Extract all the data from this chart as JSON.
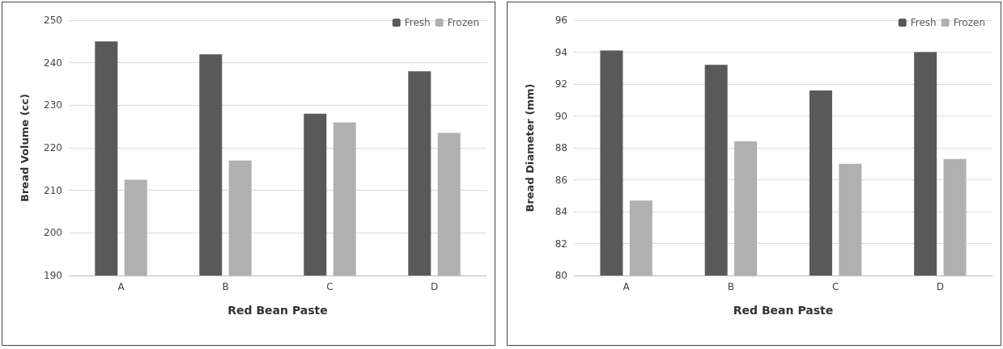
{
  "chart_data": [
    {
      "type": "bar",
      "xlabel": "Red Bean Paste",
      "ylabel": "Bread Volume (cc)",
      "categories": [
        "A",
        "B",
        "C",
        "D"
      ],
      "series": [
        {
          "name": "Fresh",
          "color": "#595959",
          "values": [
            245,
            242,
            228,
            238
          ]
        },
        {
          "name": "Frozen",
          "color": "#b0b0b0",
          "values": [
            212.5,
            217,
            226,
            223.5
          ]
        }
      ],
      "ylim": [
        190,
        250
      ],
      "yticks": [
        190,
        200,
        210,
        220,
        230,
        240,
        250
      ],
      "grid": "y",
      "legend": "top right"
    },
    {
      "type": "bar",
      "xlabel": "Red Bean Paste",
      "ylabel": "Bread Diameter (mm)",
      "categories": [
        "A",
        "B",
        "C",
        "D"
      ],
      "series": [
        {
          "name": "Fresh",
          "color": "#595959",
          "values": [
            94.1,
            93.2,
            91.6,
            94.0
          ]
        },
        {
          "name": "Frozen",
          "color": "#b0b0b0",
          "values": [
            84.7,
            88.4,
            87.0,
            87.3
          ]
        }
      ],
      "ylim": [
        80,
        96
      ],
      "yticks": [
        80,
        82,
        84,
        86,
        88,
        90,
        92,
        94,
        96
      ],
      "grid": "y",
      "legend": "top right"
    }
  ]
}
